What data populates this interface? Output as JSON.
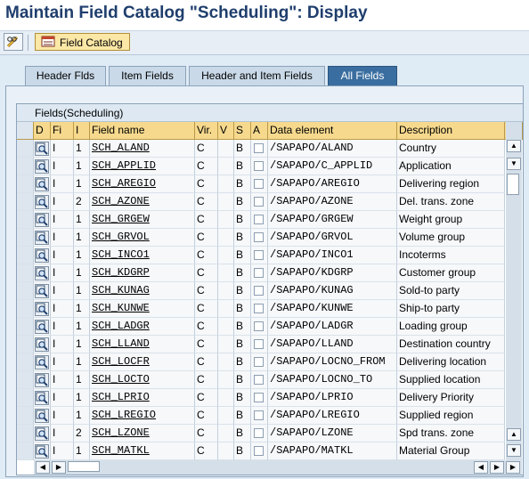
{
  "window": {
    "title": "Maintain Field Catalog \"Scheduling\": Display"
  },
  "toolbar": {
    "field_catalog_label": "Field Catalog"
  },
  "tabs": [
    {
      "label": "Header Flds"
    },
    {
      "label": "Item Fields"
    },
    {
      "label": "Header and Item Fields"
    },
    {
      "label": "All Fields",
      "active": true
    }
  ],
  "grid": {
    "title": "Fields(Scheduling)",
    "columns": [
      "D",
      "Fi",
      "I",
      "Field name",
      "Vir.",
      "V",
      "S",
      "A",
      "Data element",
      "Description"
    ],
    "rows": [
      {
        "fi": "I",
        "i": "1",
        "field_name": "SCH_ALAND",
        "vir": "C",
        "s": "B",
        "data_element": "/SAPAPO/ALAND",
        "description": "Country"
      },
      {
        "fi": "I",
        "i": "1",
        "field_name": "SCH_APPLID",
        "vir": "C",
        "s": "B",
        "data_element": "/SAPAPO/C_APPLID",
        "description": "Application"
      },
      {
        "fi": "I",
        "i": "1",
        "field_name": "SCH_AREGIO",
        "vir": "C",
        "s": "B",
        "data_element": "/SAPAPO/AREGIO",
        "description": "Delivering region"
      },
      {
        "fi": "I",
        "i": "2",
        "field_name": "SCH_AZONE",
        "vir": "C",
        "s": "B",
        "data_element": "/SAPAPO/AZONE",
        "description": "Del. trans. zone"
      },
      {
        "fi": "I",
        "i": "1",
        "field_name": "SCH_GRGEW",
        "vir": "C",
        "s": "B",
        "data_element": "/SAPAPO/GRGEW",
        "description": "Weight group"
      },
      {
        "fi": "I",
        "i": "1",
        "field_name": "SCH_GRVOL",
        "vir": "C",
        "s": "B",
        "data_element": "/SAPAPO/GRVOL",
        "description": "Volume group"
      },
      {
        "fi": "I",
        "i": "1",
        "field_name": "SCH_INCO1",
        "vir": "C",
        "s": "B",
        "data_element": "/SAPAPO/INCO1",
        "description": "Incoterms"
      },
      {
        "fi": "I",
        "i": "1",
        "field_name": "SCH_KDGRP",
        "vir": "C",
        "s": "B",
        "data_element": "/SAPAPO/KDGRP",
        "description": "Customer group"
      },
      {
        "fi": "I",
        "i": "1",
        "field_name": "SCH_KUNAG",
        "vir": "C",
        "s": "B",
        "data_element": "/SAPAPO/KUNAG",
        "description": "Sold-to party"
      },
      {
        "fi": "I",
        "i": "1",
        "field_name": "SCH_KUNWE",
        "vir": "C",
        "s": "B",
        "data_element": "/SAPAPO/KUNWE",
        "description": "Ship-to party"
      },
      {
        "fi": "I",
        "i": "1",
        "field_name": "SCH_LADGR",
        "vir": "C",
        "s": "B",
        "data_element": "/SAPAPO/LADGR",
        "description": "Loading group"
      },
      {
        "fi": "I",
        "i": "1",
        "field_name": "SCH_LLAND",
        "vir": "C",
        "s": "B",
        "data_element": "/SAPAPO/LLAND",
        "description": "Destination country"
      },
      {
        "fi": "I",
        "i": "1",
        "field_name": "SCH_LOCFR",
        "vir": "C",
        "s": "B",
        "data_element": "/SAPAPO/LOCNO_FROM",
        "description": "Delivering location"
      },
      {
        "fi": "I",
        "i": "1",
        "field_name": "SCH_LOCTO",
        "vir": "C",
        "s": "B",
        "data_element": "/SAPAPO/LOCNO_TO",
        "description": "Supplied location"
      },
      {
        "fi": "I",
        "i": "1",
        "field_name": "SCH_LPRIO",
        "vir": "C",
        "s": "B",
        "data_element": "/SAPAPO/LPRIO",
        "description": "Delivery Priority"
      },
      {
        "fi": "I",
        "i": "1",
        "field_name": "SCH_LREGIO",
        "vir": "C",
        "s": "B",
        "data_element": "/SAPAPO/LREGIO",
        "description": "Supplied region"
      },
      {
        "fi": "I",
        "i": "2",
        "field_name": "SCH_LZONE",
        "vir": "C",
        "s": "B",
        "data_element": "/SAPAPO/LZONE",
        "description": "Spd trans. zone"
      },
      {
        "fi": "I",
        "i": "1",
        "field_name": "SCH_MATKL",
        "vir": "C",
        "s": "B",
        "data_element": "/SAPAPO/MATKL",
        "description": "Material Group"
      }
    ]
  },
  "icons": {
    "edit": "pencil-glasses-icon",
    "field_catalog": "field-catalog-icon",
    "details": "magnifier-details-icon",
    "layout": "column-layout-icon"
  },
  "colors": {
    "title": "#1f3e6d",
    "header_cells": "#f6d98d",
    "active_tab": "#3a6ea0",
    "field_catalog_button": "#fbe7a6"
  }
}
